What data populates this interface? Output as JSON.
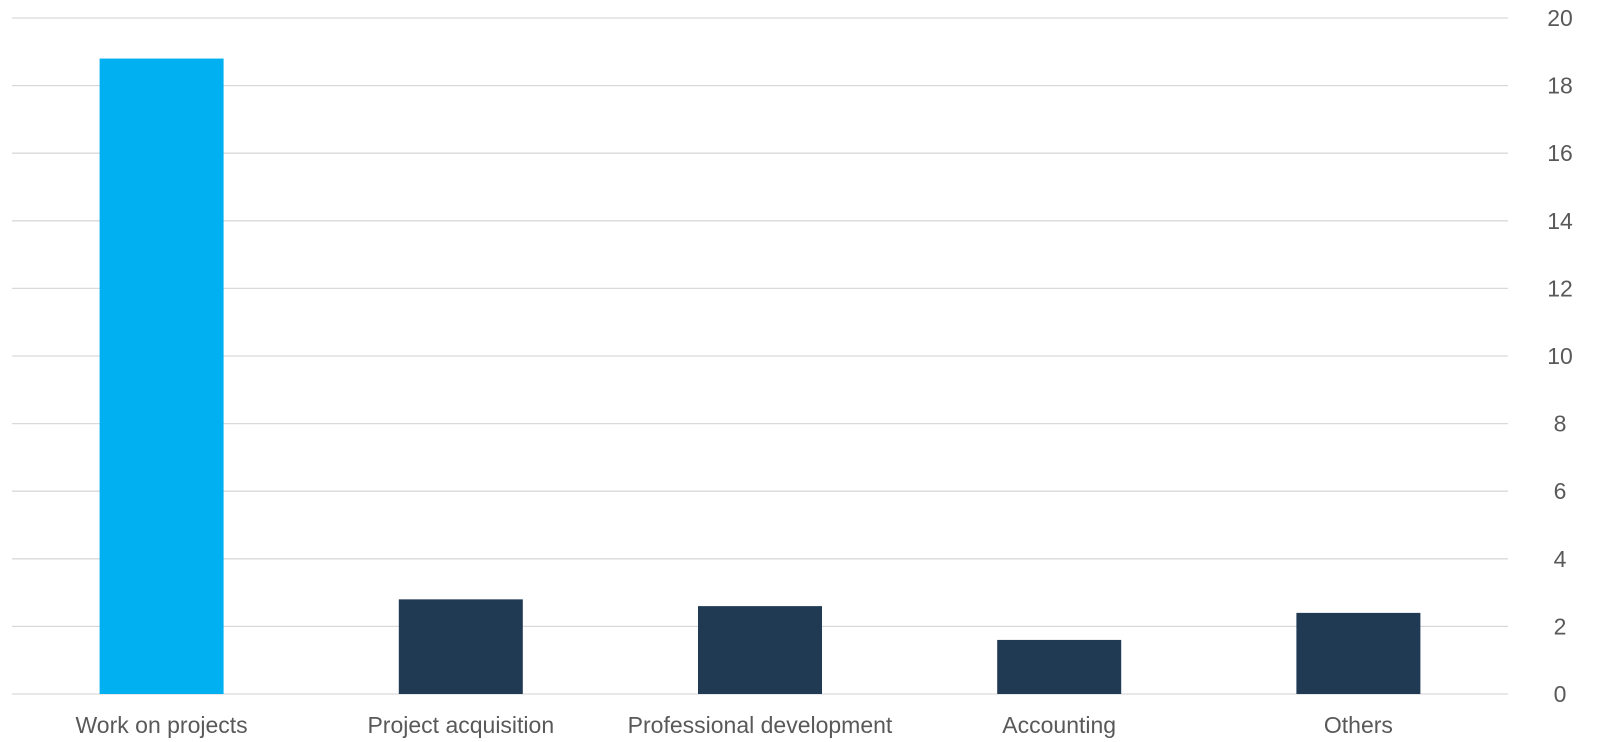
{
  "chart_data": {
    "type": "bar",
    "categories": [
      "Work on projects",
      "Project acquisition",
      "Professional development",
      "Accounting",
      "Others"
    ],
    "values": [
      18.8,
      2.8,
      2.6,
      1.6,
      2.4
    ],
    "bar_colors": [
      "#00b0f0",
      "#203a54",
      "#203a54",
      "#203a54",
      "#203a54"
    ],
    "ylim": [
      0,
      20
    ],
    "yticks": [
      0,
      2,
      4,
      6,
      8,
      10,
      12,
      14,
      16,
      18,
      20
    ],
    "y_axis_position": "right",
    "grid": true,
    "title": "",
    "xlabel": "",
    "ylabel": ""
  }
}
